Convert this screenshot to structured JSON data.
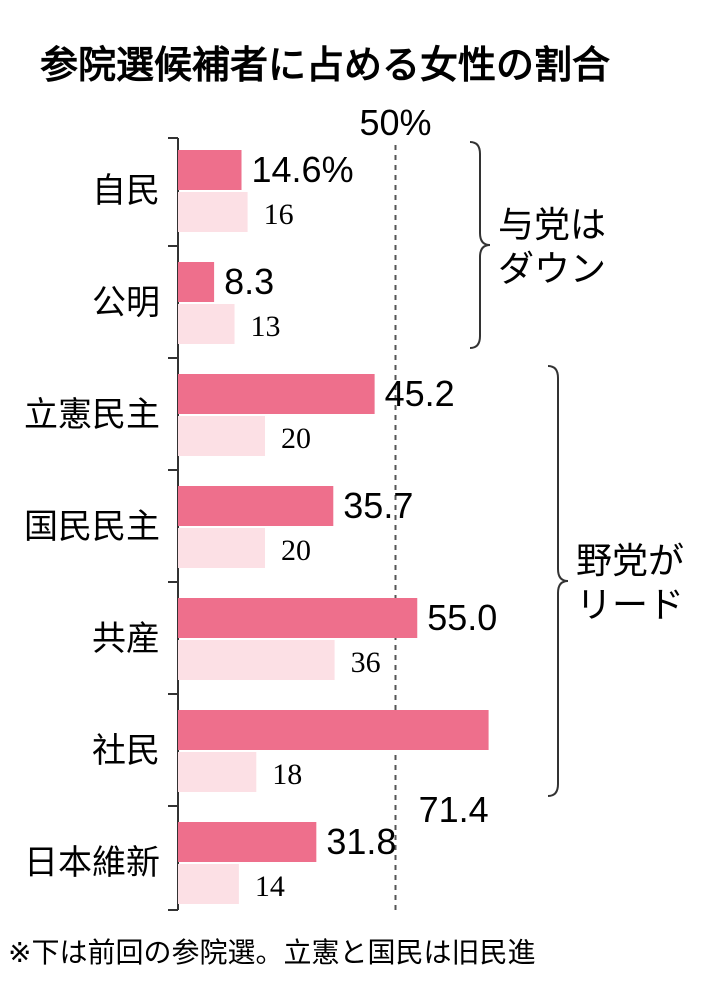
{
  "chart_data": {
    "type": "bar",
    "title": "参院選候補者に占める女性の割合",
    "reference_label": "50%",
    "reference_value": 50,
    "categories": [
      "自民",
      "公明",
      "立憲民主",
      "国民民主",
      "共産",
      "社民",
      "日本維新"
    ],
    "series": [
      {
        "values": [
          14.6,
          8.3,
          45.2,
          35.7,
          55.0,
          71.4,
          31.8
        ],
        "labels": [
          "14.6%",
          "8.3",
          "45.2",
          "35.7",
          "55.0",
          "71.4",
          "31.8"
        ]
      },
      {
        "values": [
          16,
          13,
          20,
          20,
          36,
          18,
          14
        ],
        "labels": [
          "16",
          "13",
          "20",
          "20",
          "36",
          "18",
          "14"
        ]
      }
    ],
    "groups": [
      {
        "lines": [
          "与党は",
          "ダウン"
        ],
        "from": 0,
        "to": 1
      },
      {
        "lines": [
          "野党が",
          "リード"
        ],
        "from": 2,
        "to": 5
      }
    ],
    "footnote": "※下は前回の参院選。立憲と国民は旧民進",
    "colors": {
      "current": "#ee6f8c",
      "previous": "#fce0e5",
      "axis": "#333333"
    }
  }
}
